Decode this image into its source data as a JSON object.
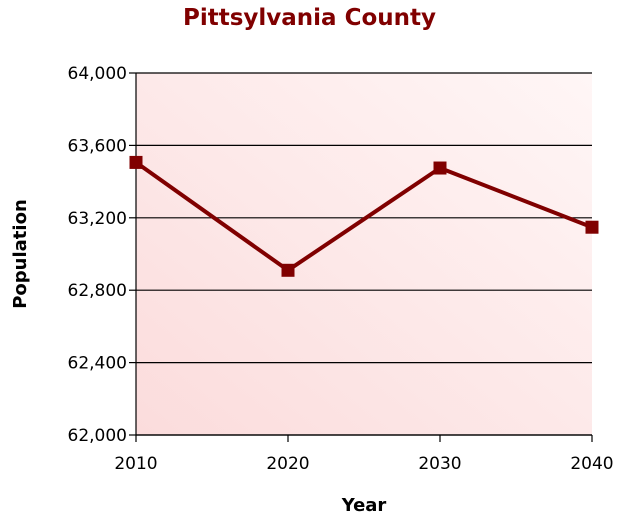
{
  "chart_data": {
    "type": "line",
    "title": "Pittsylvania County",
    "xlabel": "Year",
    "ylabel": "Population",
    "categories": [
      "2010",
      "2020",
      "2030",
      "2040"
    ],
    "series": [
      {
        "values": [
          63506,
          62910,
          63475,
          63148
        ]
      }
    ],
    "ylim": [
      62000,
      64000
    ],
    "yticks": [
      62000,
      62400,
      62800,
      63200,
      63600,
      64000
    ],
    "ytick_labels": [
      "62,000",
      "62,400",
      "62,800",
      "63,200",
      "63,600",
      "64,000"
    ],
    "grid": true,
    "legend": "none",
    "colors": {
      "title": "#800000",
      "line": "#800000",
      "marker": "#800000",
      "plot_background_light": "#fff6f6",
      "plot_background_dark": "#fbdcdc",
      "gridline": "#000000"
    }
  }
}
